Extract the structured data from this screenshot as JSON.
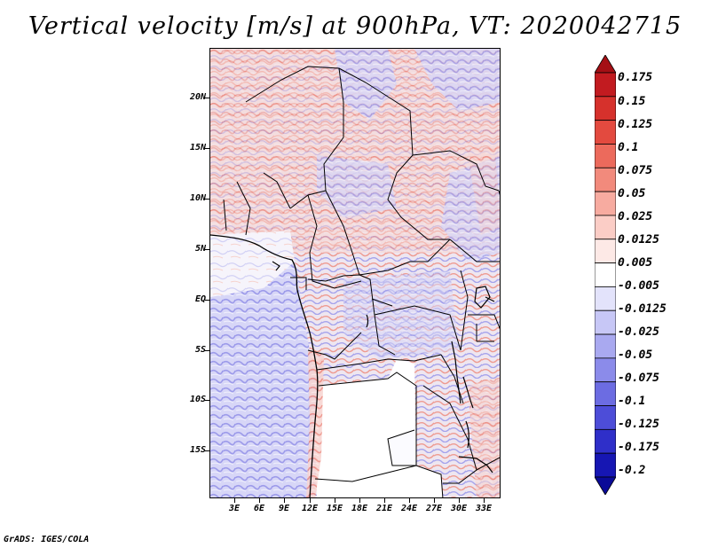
{
  "title": "Vertical velocity [m/s] at 900hPa, VT: 2020042715",
  "footer": "GrADS: IGES/COLA",
  "map": {
    "lat_labels": [
      "20N",
      "15N",
      "10N",
      "5N",
      "EQ",
      "5S",
      "10S",
      "15S"
    ],
    "lon_labels": [
      "3E",
      "6E",
      "9E",
      "12E",
      "15E",
      "18E",
      "21E",
      "24E",
      "27E",
      "30E",
      "33E"
    ]
  },
  "colorbar": {
    "labels": [
      "0.175",
      "0.15",
      "0.125",
      "0.1",
      "0.075",
      "0.05",
      "0.025",
      "0.0125",
      "0.005",
      "-0.005",
      "-0.0125",
      "-0.025",
      "-0.05",
      "-0.075",
      "-0.1",
      "-0.125",
      "-0.175",
      "-0.2"
    ],
    "colors": [
      "#a50f15",
      "#c21b20",
      "#d6312c",
      "#e34a3f",
      "#ec6a5c",
      "#f28a7c",
      "#f7aba0",
      "#fbcdc6",
      "#fde9e6",
      "#ffffff",
      "#e3e3fb",
      "#c7c7f6",
      "#a9a9f0",
      "#8b8bea",
      "#6c6ce2",
      "#4d4dd8",
      "#2f2fc9",
      "#1616b3",
      "#0a0a98"
    ]
  }
}
